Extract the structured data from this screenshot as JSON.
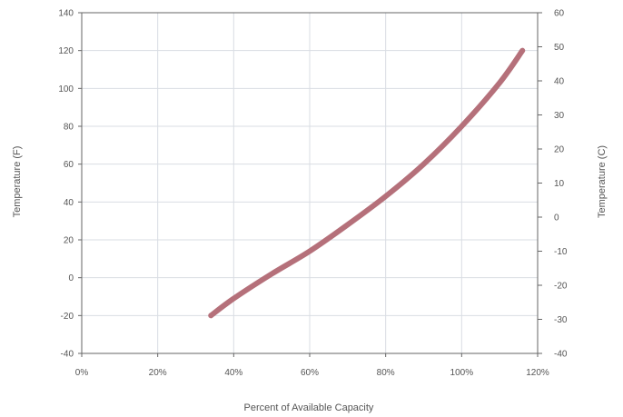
{
  "chart_data": {
    "type": "line",
    "xlabel": "Percent of Available Capacity",
    "ylabel": "Temperature (F)",
    "y2label": "Temperature (C)",
    "xlim": [
      0,
      120
    ],
    "ylim": [
      -40,
      140
    ],
    "y2lim": [
      -40,
      60
    ],
    "x_ticks": [
      0,
      20,
      40,
      60,
      80,
      100,
      120
    ],
    "x_tick_labels": [
      "0%",
      "20%",
      "40%",
      "60%",
      "80%",
      "100%",
      "120%"
    ],
    "y_ticks": [
      -40,
      -20,
      0,
      20,
      40,
      60,
      80,
      100,
      120,
      140
    ],
    "y_tick_labels": [
      "-40",
      "-20",
      "0",
      "20",
      "40",
      "60",
      "80",
      "100",
      "120",
      "140"
    ],
    "y2_ticks": [
      -40,
      -30,
      -20,
      -10,
      0,
      10,
      20,
      30,
      40,
      50,
      60
    ],
    "y2_tick_labels": [
      "-40",
      "-30",
      "-20",
      "-10",
      "0",
      "10",
      "20",
      "30",
      "40",
      "50",
      "60"
    ],
    "grid": true,
    "series": [
      {
        "color": "#b5707a",
        "x": [
          34,
          40,
          50,
          60,
          70,
          80,
          90,
          100,
          110,
          116
        ],
        "y": [
          -20,
          -11,
          2,
          14,
          28,
          43,
          60,
          80,
          103,
          120
        ]
      }
    ]
  }
}
